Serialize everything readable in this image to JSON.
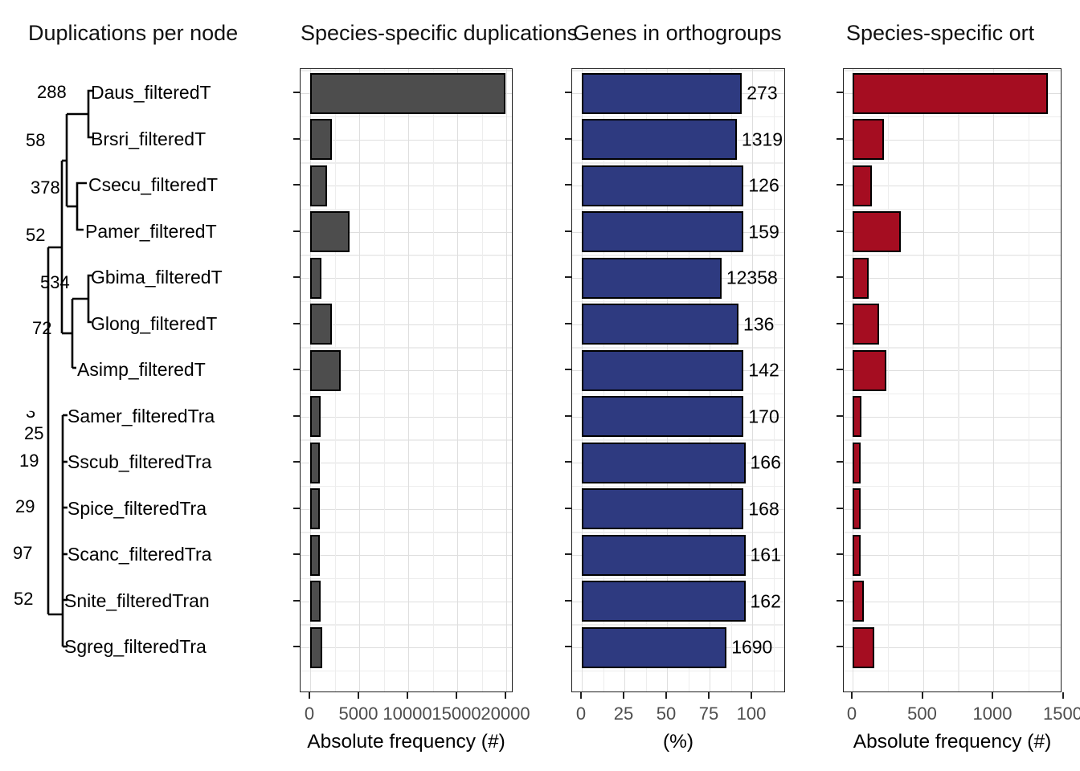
{
  "titles": [
    "Duplications per node",
    "Species-specific duplications",
    "Genes in orthogroups",
    "Species-specific ort"
  ],
  "tree": {
    "species": [
      "Daus_filteredT",
      "Brsri_filteredT",
      "Csecu_filteredT",
      "Pamer_filteredT",
      "Gbima_filteredT",
      "Glong_filteredT",
      "Asimp_filteredT",
      "Samer_filteredTra",
      "Sscub_filteredTra",
      "Spice_filteredTra",
      "Scanc_filteredTra",
      "Snite_filteredTran",
      "Sgreg_filteredTra"
    ],
    "node_labels": [
      "288",
      "58",
      "378",
      "52",
      "534",
      "72",
      "3",
      "25",
      "19",
      "29",
      "97",
      "52"
    ]
  },
  "chart_data": [
    {
      "type": "bar",
      "title": "Duplications per node",
      "xlabel": "Absolute frequency (#)",
      "categories": [
        "Daus",
        "Brsri",
        "Csecu",
        "Pamer",
        "Gbima",
        "Glong",
        "Asimp",
        "Samer",
        "Sscub",
        "Spice",
        "Scanc",
        "Snite",
        "Sgreg"
      ],
      "values": [
        19900,
        2200,
        1700,
        4000,
        1150,
        2200,
        3100,
        1070,
        980,
        980,
        980,
        1070,
        1230
      ],
      "xticks": [
        0,
        5000,
        10000,
        15000,
        20000
      ],
      "xlim": [
        0,
        20700
      ],
      "grid": true,
      "bar_color": "#4d4d4d"
    },
    {
      "type": "bar",
      "title": "Genes in orthogroups",
      "xlabel": "(%)",
      "categories": [
        "Daus",
        "Brsri",
        "Csecu",
        "Pamer",
        "Gbima",
        "Glong",
        "Asimp",
        "Samer",
        "Sscub",
        "Spice",
        "Scanc",
        "Snite",
        "Sgreg"
      ],
      "values": [
        94,
        91,
        95,
        95,
        82,
        92,
        95,
        95,
        96,
        95,
        96,
        96,
        85
      ],
      "value_labels": [
        "273",
        "1319",
        "126",
        "159",
        "12358",
        "136",
        "142",
        "170",
        "166",
        "168",
        "161",
        "162",
        "1690"
      ],
      "xticks": [
        0,
        25,
        50,
        75,
        100
      ],
      "xlim": [
        0,
        120
      ],
      "grid": true,
      "bar_color": "#2e3a80"
    },
    {
      "type": "bar",
      "title": "Species-specific ort",
      "xlabel": "Absolute frequency (#)",
      "categories": [
        "Daus",
        "Brsri",
        "Csecu",
        "Pamer",
        "Gbima",
        "Glong",
        "Asimp",
        "Samer",
        "Sscub",
        "Spice",
        "Scanc",
        "Snite",
        "Sgreg"
      ],
      "values": [
        1390,
        225,
        135,
        345,
        115,
        190,
        240,
        65,
        55,
        55,
        55,
        80,
        155
      ],
      "xticks": [
        0,
        500,
        1000,
        1500
      ],
      "xlim": [
        0,
        1490
      ],
      "grid": true,
      "bar_color": "#a50d21"
    }
  ],
  "colors": {
    "bar_gray": "#4d4d4d",
    "bar_blue": "#2e3a80",
    "bar_red": "#a50d21",
    "grid_major": "#dedede",
    "grid_minor": "#ededed",
    "tick_label": "#4d4d4d"
  }
}
